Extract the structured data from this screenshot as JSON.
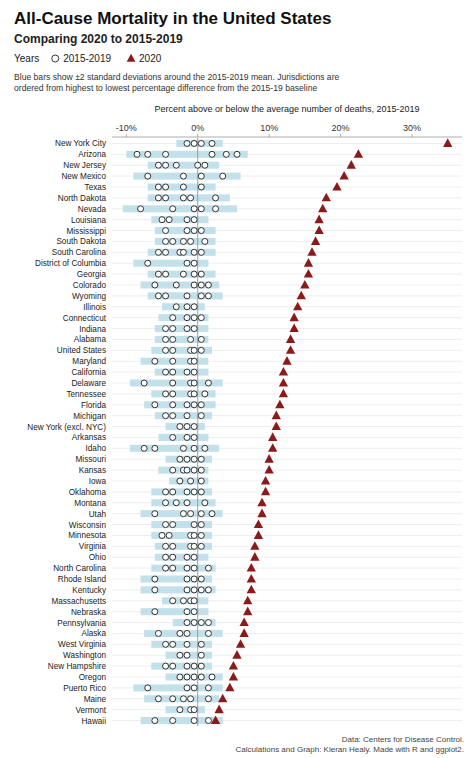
{
  "chart_data": {
    "type": "dot",
    "orientation": "horizontal",
    "title": "All-Cause Mortality in the United States",
    "subtitle": "Comparing 2020 to 2015-2019",
    "legend_title": "Years",
    "legend": "top",
    "caption": [
      "Blue bars show ±2 standard deviations around the 2015-2019 mean. Jurisdictions are",
      "ordered from highest to lowest percentage difference from the 2015-19 baseline"
    ],
    "xlabel": "Percent above or below the average number of deaths, 2015-2019",
    "footer": [
      "Data: Centers for Disease Control.",
      "Calculations and Graph: Kieran Healy. Made with R and ggplot2."
    ],
    "grid": true,
    "categories": [
      "New York City",
      "Arizona",
      "New Jersey",
      "New Mexico",
      "Texas",
      "North Dakota",
      "Nevada",
      "Louisiana",
      "Mississippi",
      "South Dakota",
      "South Carolina",
      "District of Columbia",
      "Georgia",
      "Colorado",
      "Wyoming",
      "Illinois",
      "Connecticut",
      "Indiana",
      "Alabama",
      "United States",
      "Maryland",
      "California",
      "Delaware",
      "Tennessee",
      "Florida",
      "Michigan",
      "New York (excl. NYC)",
      "Arkansas",
      "Idaho",
      "Missouri",
      "Kansas",
      "Iowa",
      "Oklahoma",
      "Montana",
      "Utah",
      "Wisconsin",
      "Minnesota",
      "Virginia",
      "Ohio",
      "North Carolina",
      "Rhode Island",
      "Kentucky",
      "Massachusetts",
      "Nebraska",
      "Pennsylvania",
      "Alaska",
      "West Virginia",
      "Washington",
      "New Hampshire",
      "Oregon",
      "Puerto Rico",
      "Maine",
      "Vermont",
      "Hawaii"
    ],
    "ranges": {
      "color": "#b8dce8",
      "low": [
        -3.0,
        -10.0,
        -7.0,
        -9.0,
        -7.0,
        -7.0,
        -10.5,
        -6.5,
        -6.0,
        -6.0,
        -7.0,
        -9.0,
        -7.0,
        -8.0,
        -7.0,
        -5.0,
        -5.5,
        -6.0,
        -6.0,
        -6.5,
        -8.0,
        -6.0,
        -9.5,
        -6.5,
        -7.5,
        -6.0,
        -4.5,
        -5.5,
        -9.5,
        -4.5,
        -5.5,
        -4.0,
        -6.5,
        -6.5,
        -8.0,
        -6.5,
        -6.5,
        -6.0,
        -6.0,
        -6.5,
        -8.0,
        -8.0,
        -5.0,
        -8.0,
        -3.5,
        -7.5,
        -6.5,
        -4.5,
        -6.5,
        -4.5,
        -9.0,
        -7.5,
        -4.5,
        -8.0
      ],
      "high": [
        3.5,
        7.0,
        3.0,
        6.0,
        2.5,
        4.5,
        5.5,
        1.5,
        2.5,
        2.5,
        2.5,
        1.5,
        2.5,
        3.0,
        3.5,
        1.0,
        1.5,
        1.5,
        1.5,
        2.0,
        1.5,
        1.5,
        3.5,
        2.5,
        2.5,
        2.0,
        1.0,
        1.5,
        3.0,
        2.0,
        1.5,
        1.5,
        2.0,
        2.5,
        3.5,
        2.0,
        2.0,
        2.0,
        1.5,
        2.5,
        2.0,
        2.5,
        1.5,
        1.5,
        2.5,
        3.5,
        2.0,
        2.0,
        2.0,
        3.5,
        3.5,
        3.0,
        1.0,
        3.5
      ]
    },
    "series": [
      {
        "name": "2015-2019",
        "marker": "circle",
        "color": "#333333",
        "values": [
          [
            -1.5,
            -0.5,
            0.5,
            2.0
          ],
          [
            -8.5,
            -7.0,
            -4.5,
            2.0,
            4.0,
            5.5
          ],
          [
            -5.5,
            -4.5,
            -3.0,
            0.0,
            1.0
          ],
          [
            -7.0,
            -2.0,
            0.5,
            3.5
          ],
          [
            -5.5,
            -4.5,
            -2.0,
            0.5
          ],
          [
            -5.5,
            -4.5,
            -2.0,
            -1.0,
            2.5
          ],
          [
            -8.0,
            -3.5,
            -0.5,
            0.5,
            2.5
          ],
          [
            -5.0,
            -4.0,
            -1.5,
            -0.5
          ],
          [
            -4.5,
            -1.5,
            -0.5,
            0.5
          ],
          [
            -4.5,
            -3.5,
            -2.0,
            -1.0,
            1.0
          ],
          [
            -5.5,
            -4.5,
            -2.5,
            -2.0,
            -0.5,
            0.5
          ],
          [
            -7.0,
            -1.5,
            -0.5
          ],
          [
            -5.5,
            -4.5,
            -2.0,
            -0.5,
            0.5
          ],
          [
            -6.0,
            -3.0,
            -0.5,
            0.5,
            1.5
          ],
          [
            -5.5,
            -4.5,
            -1.5,
            0.5,
            1.5
          ],
          [
            -3.0,
            -1.5,
            -0.5
          ],
          [
            -3.5,
            -1.5,
            -0.5,
            0.5
          ],
          [
            -4.5,
            -3.5,
            -1.5,
            -0.5
          ],
          [
            -4.5,
            -3.5,
            -1.0,
            0.5
          ],
          [
            -4.5,
            -3.5,
            -1.0,
            -0.5,
            0.5
          ],
          [
            -6.0,
            -3.5,
            -1.0,
            -0.5
          ],
          [
            -4.5,
            -3.5,
            -1.5,
            -0.5
          ],
          [
            -7.5,
            -3.5,
            -1.0,
            -0.5,
            1.5
          ],
          [
            -4.5,
            -3.5,
            -1.0,
            -0.5,
            1.0
          ],
          [
            -6.0,
            -3.5,
            -1.5,
            -0.5,
            0.5
          ],
          [
            -4.5,
            -3.5,
            -1.5,
            0.5
          ],
          [
            -2.5,
            -1.5,
            -0.5
          ],
          [
            -3.5,
            -1.5,
            -0.5
          ],
          [
            -7.5,
            -6.0,
            -2.0,
            -0.5,
            1.0
          ],
          [
            -2.5,
            -1.5,
            -0.5,
            0.5
          ],
          [
            -3.5,
            -2.0,
            -1.5,
            -0.5,
            0.5
          ],
          [
            -2.5,
            -1.0,
            0.5
          ],
          [
            -4.5,
            -3.5,
            -1.5,
            -0.5,
            0.5
          ],
          [
            -4.5,
            -3.0,
            -1.5,
            1.0
          ],
          [
            -6.0,
            -2.0,
            -1.0,
            0.5,
            2.0
          ],
          [
            -4.5,
            -3.5,
            -0.5,
            0.5
          ],
          [
            -5.0,
            -4.0,
            -1.0,
            -0.5,
            0.5
          ],
          [
            -4.5,
            -3.5,
            -1.0,
            -0.5,
            0.5
          ],
          [
            -4.5,
            -3.5,
            -1.5,
            -0.5
          ],
          [
            -4.5,
            -3.5,
            -1.5,
            -0.5,
            1.5
          ],
          [
            -6.0,
            -1.5,
            -0.5,
            0.5
          ],
          [
            -6.0,
            -1.5,
            -0.5,
            0.5,
            1.5
          ],
          [
            -3.5,
            -2.0,
            -1.0,
            -0.5
          ],
          [
            -6.0,
            -1.5,
            -0.5
          ],
          [
            -1.5,
            -0.5,
            0.5,
            1.5
          ],
          [
            -5.5,
            -2.5,
            -1.5,
            1.5
          ],
          [
            -4.5,
            -3.5,
            -1.5,
            0.5
          ],
          [
            -2.5,
            -1.5,
            0.5
          ],
          [
            -4.5,
            -3.5,
            -1.5,
            -0.5,
            0.5
          ],
          [
            -2.5,
            -1.5,
            -0.5,
            0.5,
            2.0
          ],
          [
            -7.0,
            -1.5,
            -0.5,
            1.5
          ],
          [
            -5.5,
            -3.5,
            -2.0,
            -1.0,
            1.5
          ],
          [
            -2.5,
            -1.0,
            -0.5
          ],
          [
            -6.0,
            -3.5,
            -0.5,
            1.5
          ]
        ]
      },
      {
        "name": "2020",
        "marker": "triangle",
        "color": "#8b1a1a",
        "values": [
          35.0,
          22.5,
          21.5,
          20.5,
          19.5,
          18.0,
          17.5,
          17.0,
          17.0,
          16.5,
          16.0,
          15.5,
          15.5,
          15.0,
          14.5,
          14.0,
          13.5,
          13.5,
          13.0,
          13.0,
          12.5,
          12.0,
          12.0,
          12.0,
          11.5,
          11.0,
          11.0,
          10.5,
          10.5,
          10.0,
          10.0,
          9.5,
          9.5,
          9.0,
          9.0,
          8.5,
          8.5,
          8.0,
          8.0,
          7.5,
          7.5,
          7.5,
          7.0,
          7.0,
          6.5,
          6.5,
          6.0,
          5.5,
          5.0,
          5.0,
          4.5,
          3.5,
          3.0,
          2.5
        ]
      }
    ],
    "xlim": [
      -12,
      37
    ],
    "xticks": [
      {
        "value": -10,
        "label": "-10%"
      },
      {
        "value": 0,
        "label": "0%"
      },
      {
        "value": 10,
        "label": "10%"
      },
      {
        "value": 20,
        "label": "20%"
      },
      {
        "value": 30,
        "label": "30%"
      }
    ]
  }
}
